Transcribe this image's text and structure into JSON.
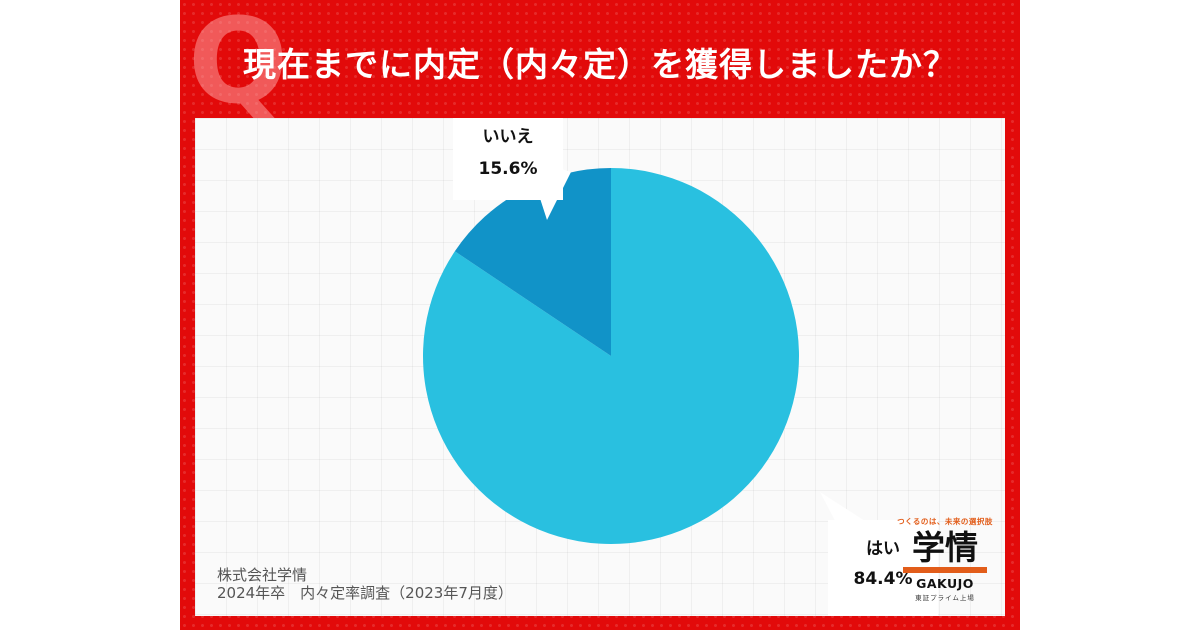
{
  "title": "現在までに内定（内々定）を獲得しましたか？",
  "q_mark": "Q",
  "source": {
    "line1": "株式会社学情",
    "line2": "2024年卒　内々定率調査（2023年7月度）"
  },
  "logo": {
    "tagline": "つくるのは、未来の選択肢",
    "name": "学情",
    "name_en": "GAKUJO",
    "sub": "東証プライム上場"
  },
  "colors": {
    "background": "#e20a0a",
    "hai": "#29c0e0",
    "iie": "#1193c8"
  },
  "chart_data": {
    "type": "pie",
    "slices": [
      {
        "label": "はい",
        "value": 84.4,
        "display": "84.4%"
      },
      {
        "label": "いいえ",
        "value": 15.6,
        "display": "15.6%"
      }
    ],
    "start_angle_deg": 0,
    "direction": "clockwise"
  }
}
